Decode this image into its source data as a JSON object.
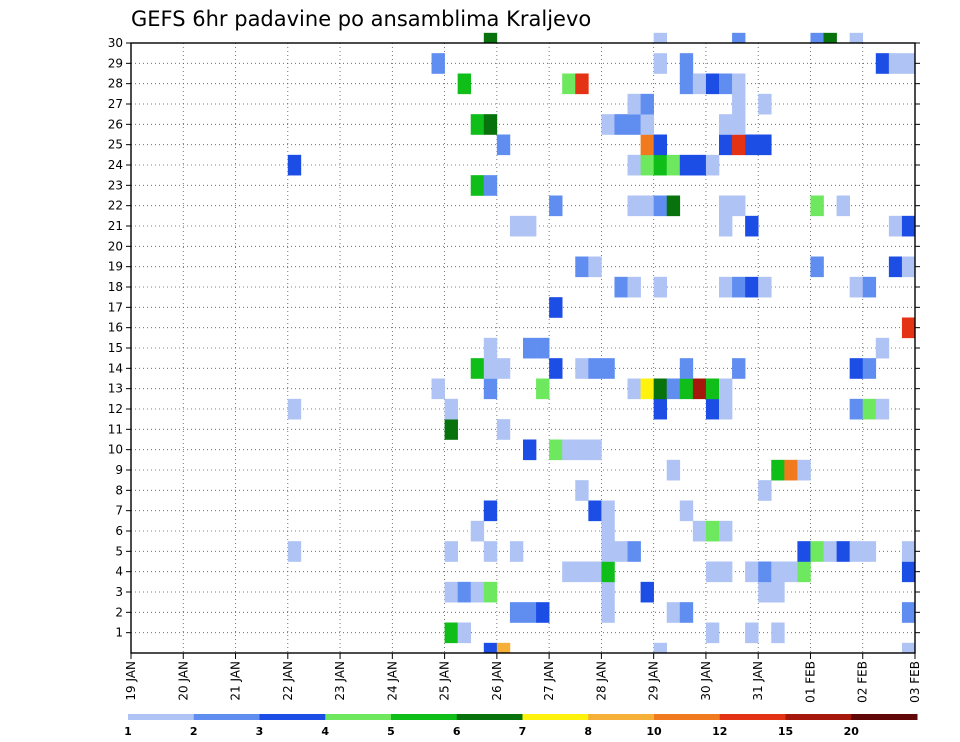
{
  "chart_data": {
    "type": "heatmap",
    "title": "GEFS 6hr padavine po ansamblima Kraljevo",
    "xlabel": "",
    "ylabel": "",
    "x_tick_labels": [
      "19 JAN",
      "20 JAN",
      "21 JAN",
      "22 JAN",
      "23 JAN",
      "24 JAN",
      "25 JAN",
      "26 JAN",
      "27 JAN",
      "28 JAN",
      "29 JAN",
      "30 JAN",
      "31 JAN",
      "01 FEB",
      "02 FEB",
      "03 FEB"
    ],
    "y_tick_labels": [
      "1",
      "2",
      "3",
      "4",
      "5",
      "6",
      "7",
      "8",
      "9",
      "10",
      "11",
      "12",
      "13",
      "14",
      "15",
      "16",
      "17",
      "18",
      "19",
      "20",
      "21",
      "22",
      "23",
      "24",
      "25",
      "26",
      "27",
      "28",
      "29",
      "30"
    ],
    "xlim_steps": [
      0,
      60
    ],
    "steps_per_day": 4,
    "ylim_members": [
      0,
      30
    ],
    "colorbar": {
      "tick_labels": [
        "1",
        "2",
        "3",
        "4",
        "5",
        "6",
        "7",
        "8",
        "10",
        "12",
        "15",
        "20"
      ],
      "bins": [
        {
          "from": 1,
          "to": 2,
          "color": "#afc3f5"
        },
        {
          "from": 2,
          "to": 3,
          "color": "#5f8ef0"
        },
        {
          "from": 3,
          "to": 4,
          "color": "#1c4ee6"
        },
        {
          "from": 4,
          "to": 5,
          "color": "#6ee85f"
        },
        {
          "from": 5,
          "to": 6,
          "color": "#0fbe18"
        },
        {
          "from": 6,
          "to": 7,
          "color": "#08720d"
        },
        {
          "from": 7,
          "to": 8,
          "color": "#fff20c"
        },
        {
          "from": 8,
          "to": 10,
          "color": "#f7b037"
        },
        {
          "from": 10,
          "to": 12,
          "color": "#f07a1d"
        },
        {
          "from": 12,
          "to": 15,
          "color": "#e43214"
        },
        {
          "from": 15,
          "to": 20,
          "color": "#a7180c"
        },
        {
          "from": 20,
          "to": 30,
          "color": "#610707"
        }
      ]
    },
    "cells_note": "each cell = [time_step_index (6h steps from 19 JAN 00Z), ensemble_member, precipitation_bin_lower_value_mm]",
    "cells": [
      [
        27,
        0,
        3
      ],
      [
        28,
        0,
        8
      ],
      [
        40,
        0,
        1
      ],
      [
        59,
        0,
        1
      ],
      [
        24,
        1,
        5
      ],
      [
        25,
        1,
        1
      ],
      [
        44,
        1,
        1
      ],
      [
        47,
        1,
        1
      ],
      [
        49,
        1,
        1
      ],
      [
        29,
        2,
        2
      ],
      [
        30,
        2,
        2
      ],
      [
        31,
        2,
        3
      ],
      [
        36,
        2,
        1
      ],
      [
        41,
        2,
        1
      ],
      [
        42,
        2,
        2
      ],
      [
        59,
        2,
        2
      ],
      [
        24,
        3,
        1
      ],
      [
        25,
        3,
        2
      ],
      [
        26,
        3,
        1
      ],
      [
        27,
        3,
        4
      ],
      [
        36,
        3,
        1
      ],
      [
        39,
        3,
        3
      ],
      [
        48,
        3,
        1
      ],
      [
        49,
        3,
        1
      ],
      [
        33,
        4,
        1
      ],
      [
        34,
        4,
        1
      ],
      [
        35,
        4,
        1
      ],
      [
        36,
        4,
        5
      ],
      [
        44,
        4,
        1
      ],
      [
        45,
        4,
        1
      ],
      [
        47,
        4,
        1
      ],
      [
        48,
        4,
        2
      ],
      [
        49,
        4,
        1
      ],
      [
        50,
        4,
        1
      ],
      [
        51,
        4,
        4
      ],
      [
        59,
        4,
        3
      ],
      [
        12,
        5,
        1
      ],
      [
        24,
        5,
        1
      ],
      [
        27,
        5,
        1
      ],
      [
        29,
        5,
        1
      ],
      [
        36,
        5,
        1
      ],
      [
        37,
        5,
        1
      ],
      [
        38,
        5,
        2
      ],
      [
        51,
        5,
        3
      ],
      [
        52,
        5,
        4
      ],
      [
        53,
        5,
        1
      ],
      [
        54,
        5,
        3
      ],
      [
        55,
        5,
        1
      ],
      [
        56,
        5,
        1
      ],
      [
        59,
        5,
        1
      ],
      [
        26,
        6,
        1
      ],
      [
        36,
        6,
        1
      ],
      [
        43,
        6,
        1
      ],
      [
        44,
        6,
        4
      ],
      [
        45,
        6,
        1
      ],
      [
        27,
        7,
        3
      ],
      [
        35,
        7,
        3
      ],
      [
        36,
        7,
        1
      ],
      [
        42,
        7,
        1
      ],
      [
        34,
        8,
        1
      ],
      [
        48,
        8,
        1
      ],
      [
        41,
        9,
        1
      ],
      [
        49,
        9,
        5
      ],
      [
        50,
        9,
        10
      ],
      [
        51,
        9,
        1
      ],
      [
        30,
        10,
        3
      ],
      [
        32,
        10,
        4
      ],
      [
        33,
        10,
        1
      ],
      [
        34,
        10,
        1
      ],
      [
        35,
        10,
        1
      ],
      [
        24,
        11,
        6
      ],
      [
        28,
        11,
        1
      ],
      [
        12,
        12,
        1
      ],
      [
        24,
        12,
        1
      ],
      [
        40,
        12,
        3
      ],
      [
        44,
        12,
        3
      ],
      [
        45,
        12,
        1
      ],
      [
        55,
        12,
        2
      ],
      [
        56,
        12,
        4
      ],
      [
        57,
        12,
        1
      ],
      [
        23,
        13,
        1
      ],
      [
        27,
        13,
        2
      ],
      [
        31,
        13,
        4
      ],
      [
        38,
        13,
        1
      ],
      [
        39,
        13,
        7
      ],
      [
        40,
        13,
        6
      ],
      [
        41,
        13,
        2
      ],
      [
        42,
        13,
        5
      ],
      [
        43,
        13,
        15
      ],
      [
        44,
        13,
        5
      ],
      [
        45,
        13,
        1
      ],
      [
        26,
        14,
        5
      ],
      [
        27,
        14,
        1
      ],
      [
        28,
        14,
        1
      ],
      [
        32,
        14,
        3
      ],
      [
        34,
        14,
        1
      ],
      [
        35,
        14,
        2
      ],
      [
        36,
        14,
        2
      ],
      [
        42,
        14,
        2
      ],
      [
        46,
        14,
        2
      ],
      [
        55,
        14,
        3
      ],
      [
        56,
        14,
        2
      ],
      [
        27,
        15,
        1
      ],
      [
        30,
        15,
        2
      ],
      [
        31,
        15,
        2
      ],
      [
        57,
        15,
        1
      ],
      [
        59,
        16,
        12
      ],
      [
        32,
        17,
        3
      ],
      [
        37,
        18,
        2
      ],
      [
        38,
        18,
        1
      ],
      [
        40,
        18,
        1
      ],
      [
        45,
        18,
        1
      ],
      [
        46,
        18,
        2
      ],
      [
        47,
        18,
        3
      ],
      [
        48,
        18,
        1
      ],
      [
        55,
        18,
        1
      ],
      [
        56,
        18,
        2
      ],
      [
        34,
        19,
        2
      ],
      [
        35,
        19,
        1
      ],
      [
        52,
        19,
        2
      ],
      [
        58,
        19,
        3
      ],
      [
        59,
        19,
        1
      ],
      [
        29,
        21,
        1
      ],
      [
        30,
        21,
        1
      ],
      [
        45,
        21,
        1
      ],
      [
        47,
        21,
        3
      ],
      [
        58,
        21,
        1
      ],
      [
        59,
        21,
        3
      ],
      [
        32,
        22,
        2
      ],
      [
        38,
        22,
        1
      ],
      [
        39,
        22,
        1
      ],
      [
        40,
        22,
        2
      ],
      [
        41,
        22,
        6
      ],
      [
        45,
        22,
        1
      ],
      [
        46,
        22,
        1
      ],
      [
        52,
        22,
        4
      ],
      [
        54,
        22,
        1
      ],
      [
        26,
        23,
        5
      ],
      [
        27,
        23,
        2
      ],
      [
        12,
        24,
        3
      ],
      [
        38,
        24,
        1
      ],
      [
        39,
        24,
        4
      ],
      [
        40,
        24,
        5
      ],
      [
        41,
        24,
        4
      ],
      [
        42,
        24,
        3
      ],
      [
        43,
        24,
        3
      ],
      [
        44,
        24,
        1
      ],
      [
        28,
        25,
        2
      ],
      [
        39,
        25,
        10
      ],
      [
        40,
        25,
        3
      ],
      [
        45,
        25,
        3
      ],
      [
        46,
        25,
        12
      ],
      [
        47,
        25,
        3
      ],
      [
        48,
        25,
        3
      ],
      [
        26,
        26,
        5
      ],
      [
        27,
        26,
        6
      ],
      [
        36,
        26,
        1
      ],
      [
        37,
        26,
        2
      ],
      [
        38,
        26,
        2
      ],
      [
        39,
        26,
        1
      ],
      [
        45,
        26,
        1
      ],
      [
        46,
        26,
        1
      ],
      [
        38,
        27,
        1
      ],
      [
        39,
        27,
        2
      ],
      [
        46,
        27,
        1
      ],
      [
        48,
        27,
        1
      ],
      [
        25,
        28,
        5
      ],
      [
        33,
        28,
        4
      ],
      [
        34,
        28,
        12
      ],
      [
        42,
        28,
        2
      ],
      [
        43,
        28,
        1
      ],
      [
        44,
        28,
        3
      ],
      [
        45,
        28,
        2
      ],
      [
        46,
        28,
        1
      ],
      [
        23,
        29,
        2
      ],
      [
        40,
        29,
        1
      ],
      [
        42,
        29,
        2
      ],
      [
        57,
        29,
        3
      ],
      [
        58,
        29,
        1
      ],
      [
        59,
        29,
        1
      ],
      [
        27,
        30,
        6
      ],
      [
        40,
        30,
        1
      ],
      [
        46,
        30,
        2
      ],
      [
        52,
        30,
        2
      ],
      [
        53,
        30,
        6
      ],
      [
        55,
        30,
        1
      ]
    ]
  }
}
